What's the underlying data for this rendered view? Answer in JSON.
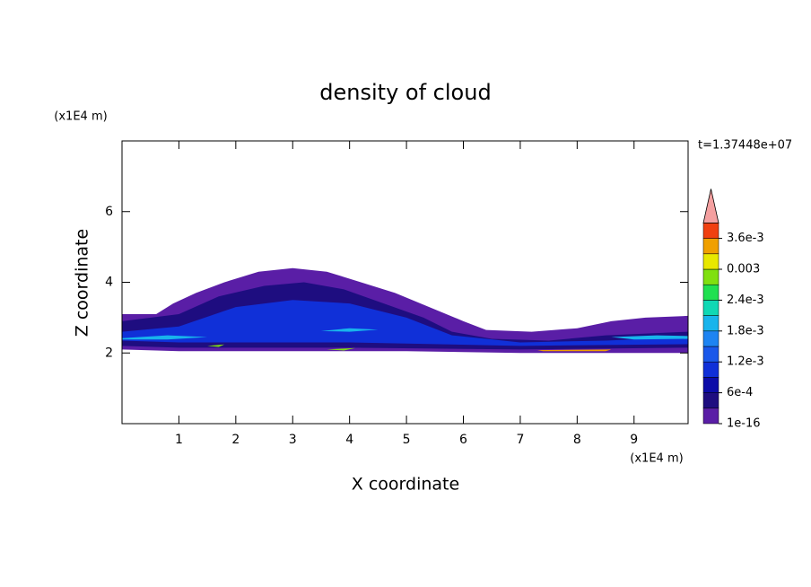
{
  "chart_data": {
    "type": "contour",
    "title": "density of cloud",
    "xlabel": "X coordinate",
    "ylabel": "Z coordinate",
    "x_unit": "(x1E4 m)",
    "y_unit": "(x1E4 m)",
    "annotation": "t=1.37448e+07",
    "xlim": [
      0,
      9.95
    ],
    "ylim": [
      0,
      8
    ],
    "xticks": [
      1,
      2,
      3,
      4,
      5,
      6,
      7,
      8,
      9
    ],
    "yticks": [
      2,
      4,
      6
    ],
    "colorbar": {
      "levels": [
        1e-16,
        0.0003,
        0.0006,
        0.0009,
        0.0012,
        0.0015,
        0.0018,
        0.0021,
        0.0024,
        0.0027,
        0.003,
        0.0033,
        0.0036,
        0.0039
      ],
      "colors": [
        "#5a1ea6",
        "#1e0d80",
        "#0c0ca8",
        "#1030d8",
        "#1a58ea",
        "#1e84f2",
        "#18b4ec",
        "#10d8b4",
        "#20e050",
        "#80e010",
        "#e8e800",
        "#f0a000",
        "#f04010"
      ],
      "extend_color": "#f4a0a0",
      "ticks": [
        {
          "value": 1e-16,
          "label": "1e-16"
        },
        {
          "value": 0.0006,
          "label": "6e-4"
        },
        {
          "value": 0.0012,
          "label": "1.2e-3"
        },
        {
          "value": 0.0018,
          "label": "1.8e-3"
        },
        {
          "value": 0.0024,
          "label": "2.4e-3"
        },
        {
          "value": 0.003,
          "label": "0.003"
        },
        {
          "value": 0.0036,
          "label": "3.6e-3"
        }
      ]
    },
    "regions": [
      {
        "value": 1e-16,
        "x": [
          0,
          0.6,
          0.9,
          1.3,
          1.8,
          2.4,
          3.0,
          3.6,
          4.2,
          4.8,
          5.4,
          6.0,
          6.4,
          7.2,
          8.0,
          8.6,
          9.2,
          9.95,
          9.95,
          8.0,
          7.0,
          5.0,
          3.0,
          1.0,
          0
        ],
        "y": [
          3.1,
          3.1,
          3.4,
          3.7,
          4.0,
          4.3,
          4.4,
          4.3,
          4.0,
          3.7,
          3.3,
          2.9,
          2.65,
          2.6,
          2.7,
          2.9,
          3.0,
          3.05,
          2.0,
          2.0,
          2.0,
          2.05,
          2.05,
          2.05,
          2.1
        ]
      },
      {
        "value": 0.0003,
        "x": [
          0,
          1,
          1.7,
          2.5,
          3.2,
          3.9,
          4.6,
          5.3,
          5.8,
          6.5,
          7.5,
          8.5,
          9.95,
          9.95,
          7,
          4,
          1,
          0
        ],
        "y": [
          2.9,
          3.1,
          3.6,
          3.9,
          4.0,
          3.8,
          3.4,
          3.0,
          2.6,
          2.4,
          2.35,
          2.5,
          2.6,
          2.15,
          2.1,
          2.15,
          2.15,
          2.2
        ]
      },
      {
        "value": 0.0009,
        "x": [
          0,
          1,
          2,
          3,
          4,
          5,
          5.8,
          7,
          8.5,
          9.95,
          9.95,
          7,
          4,
          1,
          0
        ],
        "y": [
          2.6,
          2.75,
          3.3,
          3.5,
          3.4,
          3.0,
          2.5,
          2.3,
          2.35,
          2.45,
          2.25,
          2.2,
          2.3,
          2.3,
          2.35
        ]
      },
      {
        "value": 0.0018,
        "x": [
          0,
          0.8,
          1.5,
          0.8,
          0
        ],
        "y": [
          2.42,
          2.5,
          2.45,
          2.38,
          2.38
        ]
      },
      {
        "value": 0.0018,
        "x": [
          8.6,
          9.4,
          9.95,
          9.95,
          9.0
        ],
        "y": [
          2.45,
          2.5,
          2.48,
          2.4,
          2.38
        ]
      },
      {
        "value": 0.0018,
        "x": [
          3.5,
          4.0,
          4.5,
          4.0
        ],
        "y": [
          2.62,
          2.7,
          2.66,
          2.6
        ]
      },
      {
        "value": 0.0027,
        "x": [
          1.5,
          1.8,
          1.7
        ],
        "y": [
          2.2,
          2.24,
          2.17
        ]
      },
      {
        "value": 0.0027,
        "x": [
          3.6,
          4.1,
          3.9
        ],
        "y": [
          2.1,
          2.14,
          2.07
        ]
      },
      {
        "value": 0.0033,
        "x": [
          7.3,
          8.6,
          8.5,
          7.4
        ],
        "y": [
          2.08,
          2.1,
          2.05,
          2.05
        ]
      }
    ]
  }
}
